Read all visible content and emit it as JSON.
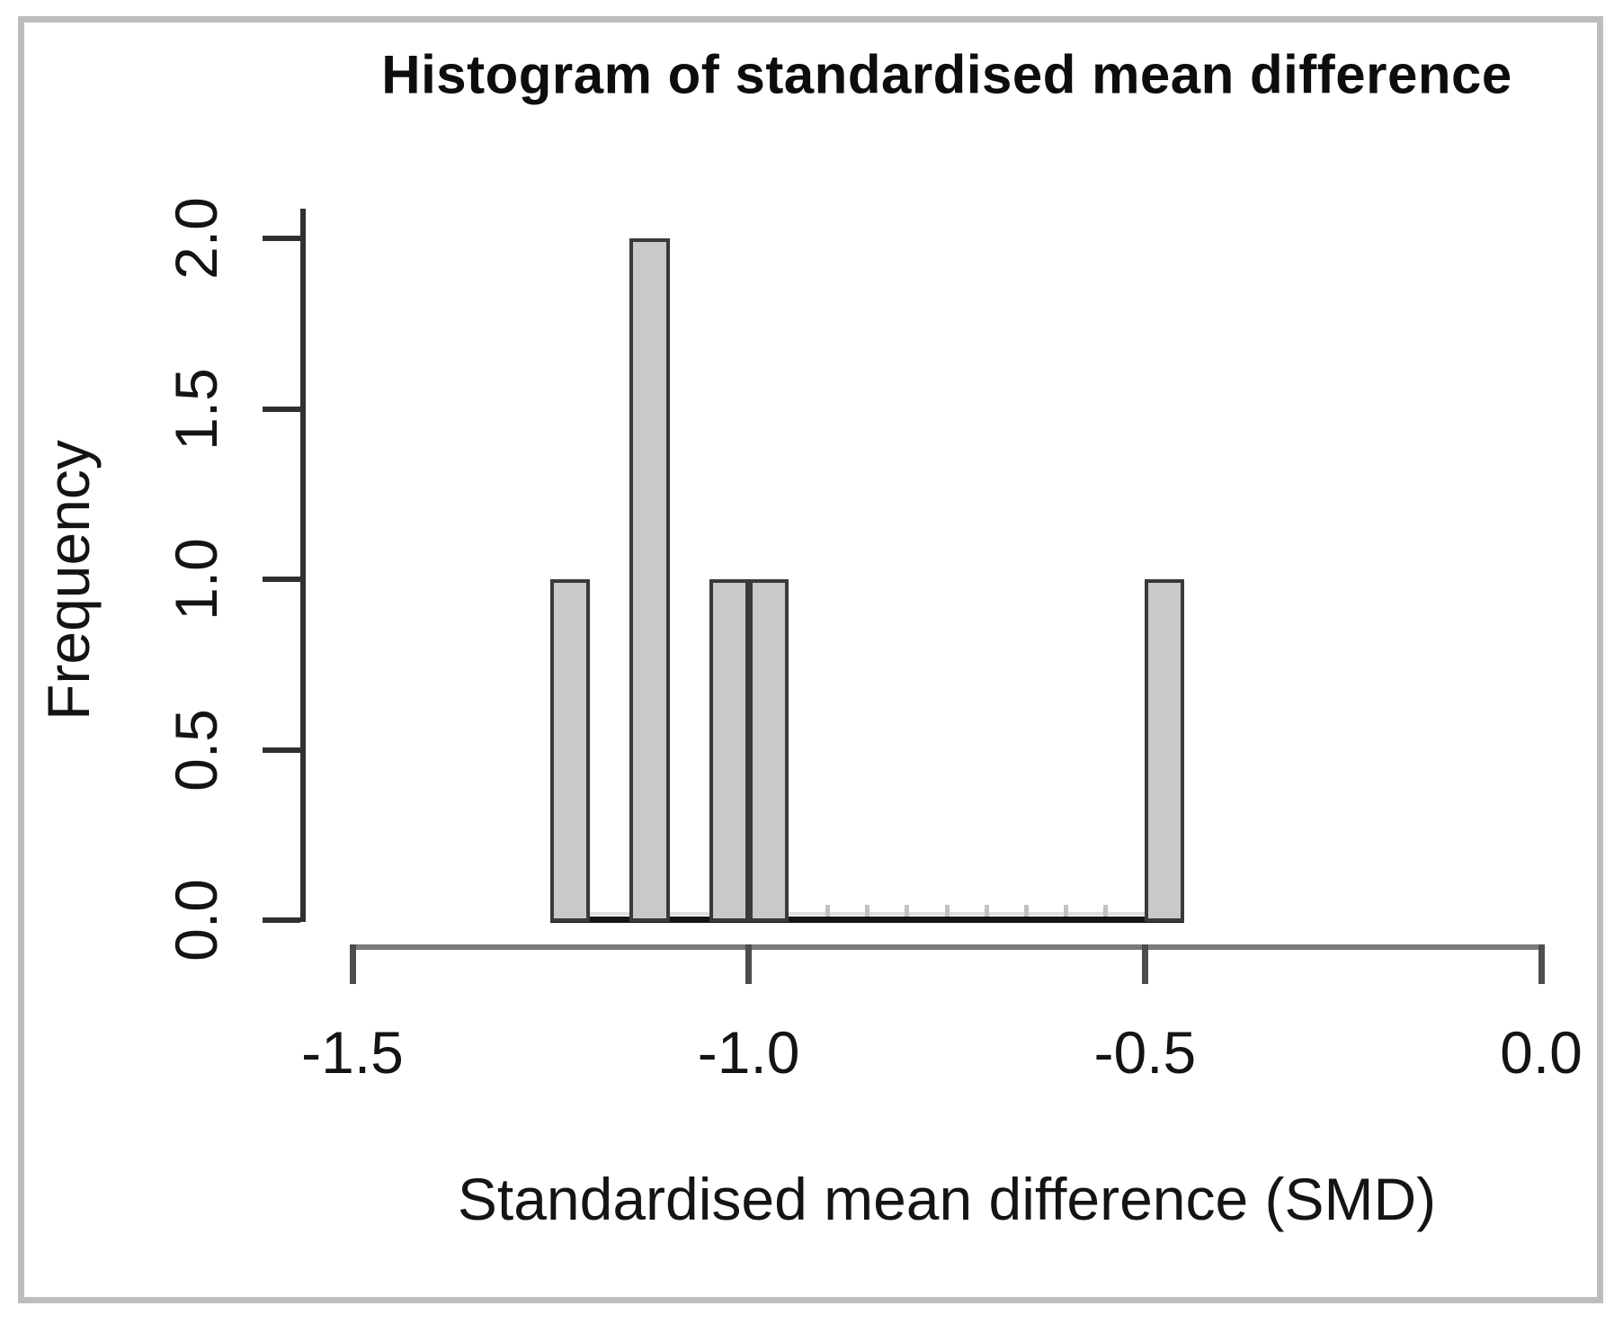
{
  "chart_data": {
    "type": "bar",
    "kind": "histogram",
    "title": "Histogram of standardised mean difference",
    "xlabel": "Standardised mean difference (SMD)",
    "ylabel": "Frequency",
    "bin_width": 0.05,
    "bin_edges": [
      -1.25,
      -1.2,
      -1.15,
      -1.1,
      -1.05,
      -1.0,
      -0.95,
      -0.9,
      -0.85,
      -0.8,
      -0.75,
      -0.7,
      -0.65,
      -0.6,
      -0.55,
      -0.5,
      -0.45
    ],
    "counts": [
      1,
      0,
      2,
      0,
      1,
      1,
      0,
      0,
      0,
      0,
      0,
      0,
      0,
      0,
      0,
      1
    ],
    "x_tick_values": [
      -1.5,
      -1.0,
      -0.5,
      0.0
    ],
    "x_tick_labels": [
      "-1.5",
      "-1.0",
      "-0.5",
      "0.0"
    ],
    "y_tick_values": [
      0.0,
      0.5,
      1.0,
      1.5,
      2.0
    ],
    "y_tick_labels": [
      "0.0",
      "0.5",
      "1.0",
      "1.5",
      "2.0"
    ],
    "xlim": [
      -1.5,
      0.0
    ],
    "ylim": [
      0,
      2
    ],
    "grid": "off",
    "legend": "none",
    "colors": {
      "bar_fill": "#c9c9c9",
      "bar_stroke": "#3a3a3a",
      "axis_line": "#7a7a7a",
      "tick_color": "#303030",
      "text_color": "#141414",
      "frame_border": "#bdbdbd",
      "background": "#ffffff"
    }
  }
}
